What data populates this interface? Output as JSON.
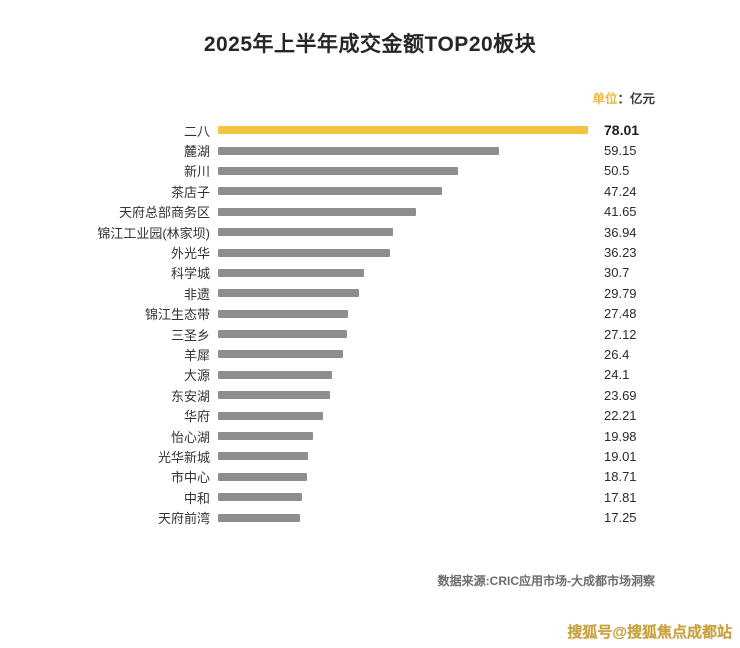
{
  "title": "2025年上半年成交金额TOP20板块",
  "unit": {
    "prefix": "单位",
    "suffix": "：亿元"
  },
  "chart_data": {
    "type": "bar",
    "orientation": "horizontal",
    "title": "2025年上半年成交金额TOP20板块",
    "unit_label": "单位：亿元",
    "categories": [
      "二八",
      "麓湖",
      "新川",
      "茶店子",
      "天府总部商务区",
      "锦江工业园(林家坝)",
      "外光华",
      "科学城",
      "非遗",
      "锦江生态带",
      "三圣乡",
      "羊犀",
      "大源",
      "东安湖",
      "华府",
      "怡心湖",
      "光华新城",
      "市中心",
      "中和",
      "天府前湾"
    ],
    "values": [
      78.01,
      59.15,
      50.5,
      47.24,
      41.65,
      36.94,
      36.23,
      30.7,
      29.79,
      27.48,
      27.12,
      26.4,
      24.1,
      23.69,
      22.21,
      19.98,
      19.01,
      18.71,
      17.81,
      17.25
    ],
    "xlim": [
      0,
      78.01
    ],
    "highlight_index": 0,
    "highlight_color": "#f3c342",
    "bar_color": "#8e8e8e",
    "grid": false,
    "legend": "none"
  },
  "source": "数据来源:CRIC应用市场-大成都市场洞察",
  "watermark": "搜狐号@搜狐焦点成都站"
}
